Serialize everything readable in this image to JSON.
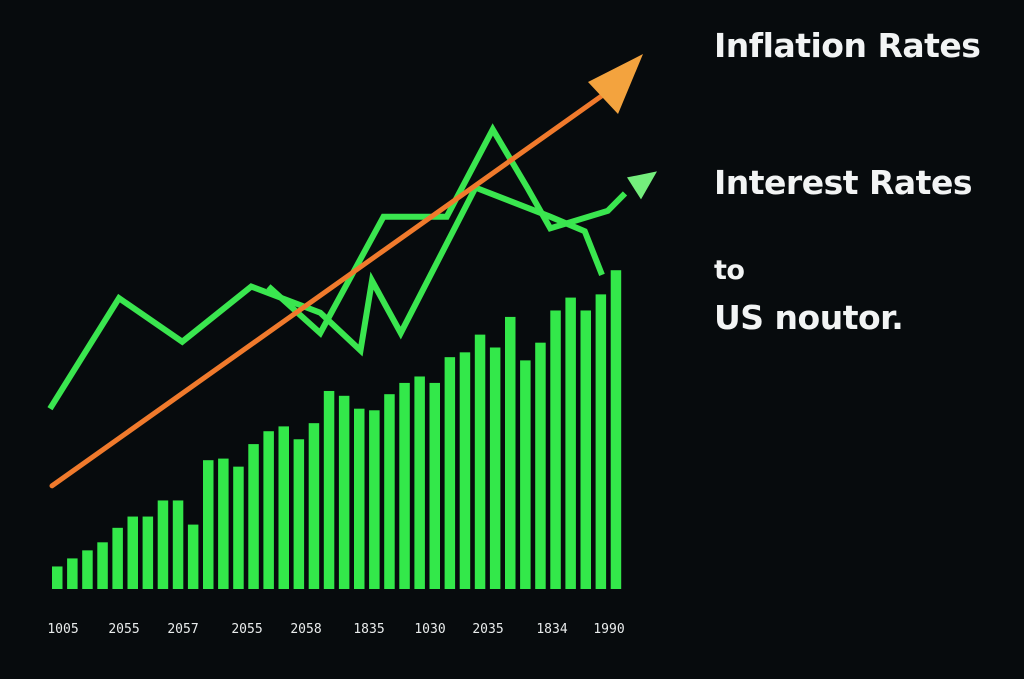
{
  "labels": {
    "inflation": "Inflation Rates",
    "interest": "Interest Rates",
    "connector": "to",
    "country": "US noutor."
  },
  "colors": {
    "background": "#070b0d",
    "bars": "#33e84a",
    "line": "#3ae64f",
    "trend": "#f07a2c",
    "trend_head": "#f3a33e",
    "line_head": "#74ee7c",
    "text": "#f2f4f4"
  },
  "chart_data": {
    "type": "bar",
    "title": "",
    "xlabel": "",
    "ylabel": "",
    "x_tick_labels": [
      "1005",
      "2055",
      "2057",
      "2055",
      "2058",
      "1835",
      "1030",
      "2035",
      "1834",
      "1990"
    ],
    "series": [
      {
        "kind": "bar",
        "values": [
          0.07,
          0.095,
          0.12,
          0.145,
          0.19,
          0.225,
          0.225,
          0.275,
          0.275,
          0.2,
          0.4,
          0.405,
          0.38,
          0.45,
          0.49,
          0.505,
          0.465,
          0.515,
          0.615,
          0.6,
          0.56,
          0.555,
          0.605,
          0.64,
          0.66,
          0.64,
          0.72,
          0.735,
          0.79,
          0.75,
          0.845,
          0.71,
          0.765,
          0.865,
          0.905,
          0.865,
          0.915,
          0.99
        ]
      },
      {
        "kind": "line",
        "x": [
          0,
          0.12,
          0.23,
          0.35,
          0.47,
          0.54,
          0.56,
          0.61,
          0.74,
          0.87,
          0.93,
          0.96
        ],
        "values": [
          0.62,
          1.0,
          0.85,
          1.04,
          0.95,
          0.82,
          1.06,
          0.88,
          1.38,
          1.28,
          1.23,
          1.08
        ]
      },
      {
        "kind": "line",
        "x": [
          0.38,
          0.47,
          0.58,
          0.69,
          0.77,
          0.83,
          0.87,
          0.97,
          1.0
        ],
        "values": [
          1.04,
          0.88,
          1.28,
          1.28,
          1.58,
          1.38,
          1.24,
          1.3,
          1.36
        ]
      },
      {
        "kind": "trend",
        "start": [
          0,
          0.2
        ],
        "end": [
          1,
          1.75
        ]
      }
    ]
  }
}
